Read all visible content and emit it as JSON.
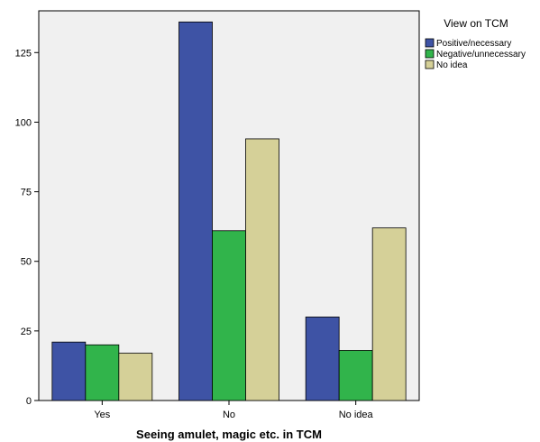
{
  "chart_data": {
    "type": "bar",
    "title": "",
    "xlabel": "Seeing amulet, magic etc. in TCM",
    "ylabel": "",
    "categories": [
      "Yes",
      "No",
      "No idea"
    ],
    "series": [
      {
        "name": "Positive/necessary",
        "values": [
          21,
          136,
          30
        ],
        "color": "#3e53a5"
      },
      {
        "name": "Negative/unnecessary",
        "values": [
          20,
          61,
          18
        ],
        "color": "#31b44b"
      },
      {
        "name": "No idea",
        "values": [
          17,
          94,
          62
        ],
        "color": "#d5d098"
      }
    ],
    "ylim": [
      0,
      140
    ],
    "yticks": [
      0,
      25,
      50,
      75,
      100,
      125
    ],
    "grid": false,
    "legend_title": "View on TCM",
    "legend_position": "top-right outside plot",
    "plot_background": "#f0f0f0"
  }
}
